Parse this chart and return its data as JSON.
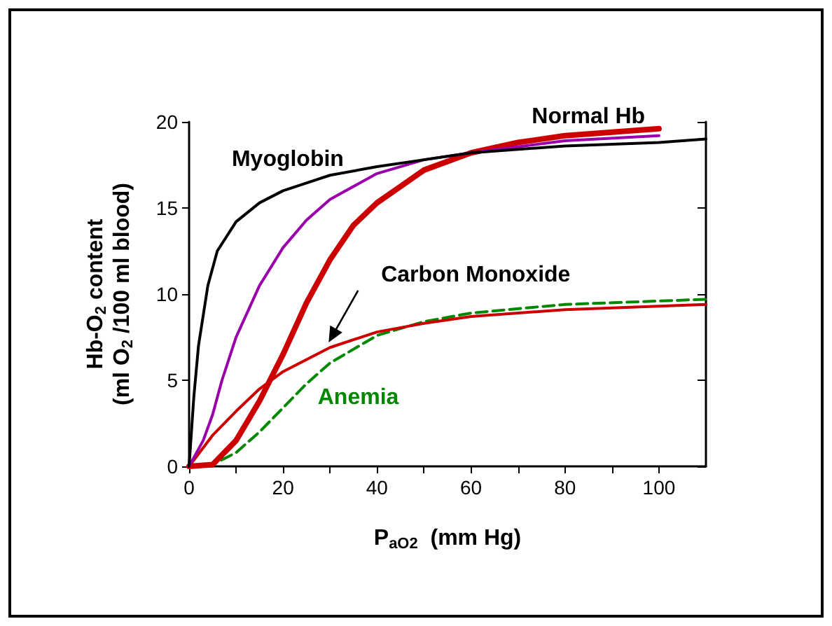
{
  "chart_data": {
    "type": "line",
    "xlabel": "P$_{aO2}$  (mm Hg)",
    "ylabel": "Hb-O$_{2}$ content\n(ml O$_{2}$ /100 ml blood)",
    "xlim": [
      0,
      110
    ],
    "ylim": [
      0,
      20
    ],
    "xticks": [
      0,
      {
        "value": 10,
        "label": null
      },
      20,
      {
        "value": 30,
        "label": null
      },
      40,
      {
        "value": 50,
        "label": null
      },
      60,
      {
        "value": 70,
        "label": null
      },
      80,
      {
        "value": 90,
        "label": null
      },
      100
    ],
    "yticks": [
      0,
      5,
      10,
      15,
      20
    ],
    "grid": false,
    "marker": "none",
    "series": [
      {
        "color": "#000000",
        "x": [
          0,
          1,
          2,
          4,
          6,
          10,
          15,
          20,
          30,
          40,
          50,
          60,
          80,
          100,
          110
        ],
        "values": [
          0,
          4,
          7,
          10.5,
          12.5,
          14.2,
          15.3,
          16.0,
          16.9,
          17.4,
          17.8,
          18.2,
          18.6,
          18.8,
          19.0
        ]
      },
      {
        "color": "#9900aa",
        "x": [
          0,
          3,
          5,
          7,
          10,
          15,
          20,
          25,
          30,
          40,
          50,
          60,
          80,
          100
        ],
        "values": [
          0,
          1.5,
          3,
          5,
          7.5,
          10.5,
          12.7,
          14.3,
          15.5,
          17.0,
          17.8,
          18.2,
          18.9,
          19.2
        ]
      },
      {
        "color": "#cc0000",
        "x": [
          0,
          5,
          10,
          15,
          20,
          25,
          30,
          35,
          40,
          50,
          60,
          70,
          80,
          90,
          100
        ],
        "values": [
          0,
          0.1,
          1.5,
          3.8,
          6.5,
          9.5,
          12.0,
          14.0,
          15.3,
          17.2,
          18.2,
          18.8,
          19.2,
          19.4,
          19.6
        ]
      },
      {
        "color": "#cc0000",
        "x": [
          0,
          5,
          10,
          15,
          20,
          30,
          40,
          50,
          60,
          80,
          100,
          110
        ],
        "values": [
          0,
          1.8,
          3.2,
          4.5,
          5.5,
          6.9,
          7.8,
          8.3,
          8.7,
          9.1,
          9.3,
          9.4
        ]
      },
      {
        "color": "#008800",
        "line_style": "dashed",
        "x": [
          0,
          5,
          10,
          15,
          20,
          25,
          30,
          40,
          50,
          60,
          80,
          100,
          110
        ],
        "values": [
          0,
          0.1,
          0.8,
          2.0,
          3.4,
          4.8,
          6.0,
          7.6,
          8.4,
          8.9,
          9.4,
          9.6,
          9.7
        ]
      }
    ],
    "annotations": [
      "Myoglobin",
      "Normal Hb",
      "Carbon Monoxide",
      "Anemia"
    ]
  }
}
